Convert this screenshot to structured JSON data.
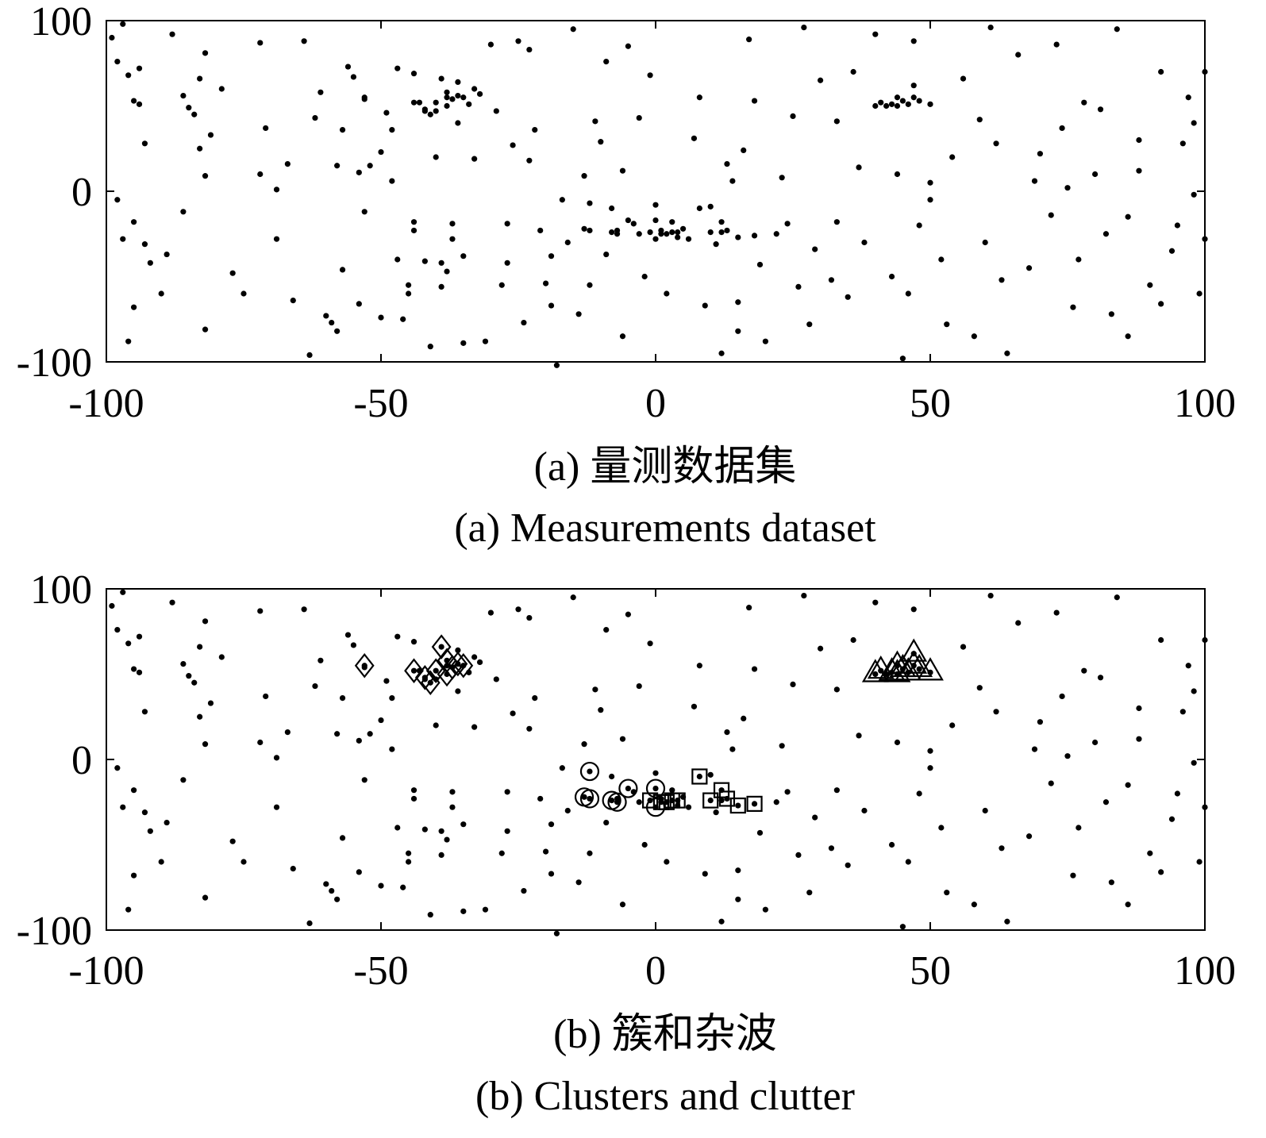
{
  "panels": [
    {
      "caption_zh": "(a) 量测数据集",
      "caption_en": "(a) Measurements dataset"
    },
    {
      "caption_zh": "(b) 簇和杂波",
      "caption_en": "(b) Clusters and clutter"
    }
  ],
  "chart_data": [
    {
      "type": "scatter",
      "title": "",
      "xlabel": "",
      "ylabel": "",
      "xlim": [
        -100,
        100
      ],
      "ylim": [
        -100,
        100
      ],
      "xticks": [
        -100,
        -50,
        0,
        50,
        100
      ],
      "yticks": [
        -100,
        0,
        100
      ],
      "xtick_labels": [
        "-100",
        "-50",
        "0",
        "50",
        "100"
      ],
      "ytick_labels": [
        "-100",
        "0",
        "100"
      ],
      "grid": false,
      "marker_color": "#000000",
      "series": [
        {
          "marker": "dot",
          "points": [
            [
              -99,
              90
            ],
            [
              -98,
              76
            ],
            [
              -97,
              98
            ],
            [
              -96,
              68
            ],
            [
              -95,
              53
            ],
            [
              -94,
              51
            ],
            [
              -93,
              28
            ],
            [
              -97,
              -28
            ],
            [
              -95,
              -18
            ],
            [
              -93,
              -31
            ],
            [
              -92,
              -42
            ],
            [
              -95,
              -68
            ],
            [
              -96,
              -88
            ],
            [
              -89,
              -37
            ],
            [
              -88,
              92
            ],
            [
              -86,
              56
            ],
            [
              -85,
              49
            ],
            [
              -84,
              45
            ],
            [
              -83,
              66
            ],
            [
              -82,
              81
            ],
            [
              -81,
              33
            ],
            [
              -82,
              9
            ],
            [
              -82,
              -81
            ],
            [
              -75,
              -60
            ],
            [
              -72,
              87
            ],
            [
              -72,
              10
            ],
            [
              -69,
              -28
            ],
            [
              -69,
              1
            ],
            [
              -67,
              16
            ],
            [
              -63,
              -96
            ],
            [
              -62,
              43
            ],
            [
              -60,
              -73
            ],
            [
              -59,
              -77
            ],
            [
              -58,
              -82
            ],
            [
              -58,
              15
            ],
            [
              -57,
              36
            ],
            [
              -56,
              73
            ],
            [
              -55,
              67
            ],
            [
              -54,
              11
            ],
            [
              -54,
              -66
            ],
            [
              -53,
              54
            ],
            [
              -52,
              15
            ],
            [
              -50,
              23
            ],
            [
              -50,
              -74
            ],
            [
              -49,
              46
            ],
            [
              -48,
              6
            ],
            [
              -47,
              72
            ],
            [
              -47,
              -40
            ],
            [
              -45,
              -55
            ],
            [
              -45,
              -60
            ],
            [
              -44,
              69
            ],
            [
              -44,
              -18
            ],
            [
              -43,
              52
            ],
            [
              -42,
              47
            ],
            [
              -42,
              -41
            ],
            [
              -41,
              -91
            ],
            [
              -40,
              47
            ],
            [
              -39,
              -42
            ],
            [
              -39,
              -56
            ],
            [
              -38,
              55
            ],
            [
              -38,
              -47
            ],
            [
              -37,
              -28
            ],
            [
              -37,
              -19
            ],
            [
              -36,
              64
            ],
            [
              -36,
              40
            ],
            [
              -35,
              -38
            ],
            [
              -35,
              -89
            ],
            [
              -34,
              51
            ],
            [
              -33,
              60
            ],
            [
              -32,
              57
            ],
            [
              -31,
              -88
            ],
            [
              -30,
              86
            ],
            [
              -29,
              47
            ],
            [
              -28,
              -55
            ],
            [
              -27,
              -19
            ],
            [
              -26,
              27
            ],
            [
              -25,
              88
            ],
            [
              -24,
              -77
            ],
            [
              -23,
              83
            ],
            [
              -22,
              36
            ],
            [
              -21,
              -23
            ],
            [
              -20,
              -54
            ],
            [
              -19,
              -38
            ],
            [
              -18,
              -102
            ],
            [
              -17,
              -5
            ],
            [
              -16,
              -30
            ],
            [
              -14,
              -72
            ],
            [
              -12,
              -55
            ],
            [
              -11,
              41
            ],
            [
              -10,
              29
            ],
            [
              -9,
              -37
            ],
            [
              -8,
              -10
            ],
            [
              -7,
              -23
            ],
            [
              -6,
              12
            ],
            [
              -5,
              85
            ],
            [
              -4,
              -19
            ],
            [
              -3,
              -25
            ],
            [
              -2,
              -50
            ],
            [
              -1,
              68
            ],
            [
              0,
              -8
            ],
            [
              1,
              -23
            ],
            [
              2,
              -60
            ],
            [
              3,
              -18
            ],
            [
              4,
              -27
            ],
            [
              5,
              -22
            ],
            [
              6,
              -28
            ],
            [
              8,
              55
            ],
            [
              10,
              -9
            ],
            [
              11,
              -31
            ],
            [
              12,
              -24
            ],
            [
              13,
              16
            ],
            [
              15,
              -82
            ],
            [
              15,
              -65
            ],
            [
              16,
              24
            ],
            [
              17,
              89
            ],
            [
              18,
              53
            ],
            [
              20,
              -88
            ],
            [
              22,
              -25
            ],
            [
              23,
              8
            ],
            [
              24,
              -19
            ],
            [
              26,
              -56
            ],
            [
              28,
              -78
            ],
            [
              30,
              65
            ],
            [
              32,
              -52
            ],
            [
              33,
              41
            ],
            [
              35,
              -62
            ],
            [
              36,
              70
            ],
            [
              38,
              -30
            ],
            [
              40,
              92
            ],
            [
              42,
              50
            ],
            [
              44,
              10
            ],
            [
              46,
              -60
            ],
            [
              48,
              -20
            ],
            [
              50,
              -5
            ],
            [
              50,
              5
            ],
            [
              52,
              -40
            ],
            [
              54,
              20
            ],
            [
              56,
              66
            ],
            [
              58,
              -85
            ],
            [
              60,
              -30
            ],
            [
              62,
              28
            ],
            [
              64,
              -95
            ],
            [
              66,
              80
            ],
            [
              68,
              -45
            ],
            [
              70,
              22
            ],
            [
              72,
              -14
            ],
            [
              74,
              37
            ],
            [
              76,
              -68
            ],
            [
              78,
              52
            ],
            [
              80,
              10
            ],
            [
              82,
              -25
            ],
            [
              84,
              95
            ],
            [
              86,
              -85
            ],
            [
              88,
              30
            ],
            [
              90,
              -55
            ],
            [
              92,
              70
            ],
            [
              94,
              -35
            ],
            [
              96,
              28
            ],
            [
              98,
              -2
            ],
            [
              99,
              -60
            ],
            [
              100,
              70
            ],
            [
              97,
              55
            ],
            [
              92,
              -66
            ],
            [
              88,
              12
            ],
            [
              83,
              -72
            ],
            [
              77,
              -40
            ],
            [
              73,
              86
            ],
            [
              69,
              6
            ],
            [
              63,
              -52
            ],
            [
              59,
              42
            ],
            [
              53,
              -78
            ],
            [
              47,
              88
            ],
            [
              43,
              -50
            ],
            [
              37,
              14
            ],
            [
              33,
              -18
            ],
            [
              29,
              -34
            ],
            [
              25,
              44
            ],
            [
              19,
              -43
            ],
            [
              14,
              6
            ],
            [
              9,
              -67
            ],
            [
              7,
              31
            ],
            [
              -3,
              43
            ],
            [
              -9,
              76
            ],
            [
              -13,
              9
            ],
            [
              -19,
              -67
            ],
            [
              -23,
              18
            ],
            [
              -27,
              -42
            ],
            [
              -33,
              19
            ],
            [
              -44,
              -23
            ],
            [
              -48,
              36
            ],
            [
              -53,
              -12
            ],
            [
              -57,
              -46
            ],
            [
              -61,
              58
            ],
            [
              -66,
              -64
            ],
            [
              -71,
              37
            ],
            [
              -77,
              -48
            ],
            [
              -83,
              25
            ],
            [
              -86,
              -12
            ],
            [
              -90,
              -60
            ],
            [
              -94,
              72
            ],
            [
              -98,
              -5
            ],
            [
              -79,
              60
            ],
            [
              -64,
              88
            ],
            [
              -46,
              -75
            ],
            [
              -40,
              20
            ],
            [
              -15,
              95
            ],
            [
              -6,
              -85
            ],
            [
              12,
              -95
            ],
            [
              27,
              96
            ],
            [
              45,
              -98
            ],
            [
              61,
              96
            ],
            [
              75,
              2
            ],
            [
              81,
              48
            ],
            [
              86,
              -15
            ],
            [
              95,
              -20
            ],
            [
              98,
              40
            ],
            [
              100,
              -28
            ]
          ]
        },
        {
          "marker": "diamond",
          "name": "",
          "points": [
            [
              -53,
              55
            ],
            [
              -44,
              52
            ],
            [
              -42,
              48
            ],
            [
              -41,
              45
            ],
            [
              -40,
              52
            ],
            [
              -39,
              66
            ],
            [
              -38,
              58
            ],
            [
              -38,
              50
            ],
            [
              -37,
              54
            ],
            [
              -36,
              56
            ],
            [
              -35,
              55
            ]
          ]
        },
        {
          "marker": "circle",
          "name": "",
          "points": [
            [
              -12,
              -7
            ],
            [
              -12,
              -23
            ],
            [
              -13,
              -22
            ],
            [
              -8,
              -24
            ],
            [
              -7,
              -25
            ],
            [
              -5,
              -17
            ],
            [
              0,
              -17
            ],
            [
              0,
              -28
            ]
          ]
        },
        {
          "marker": "square",
          "name": "",
          "points": [
            [
              -1,
              -24
            ],
            [
              1,
              -25
            ],
            [
              2,
              -25
            ],
            [
              3,
              -24
            ],
            [
              4,
              -24
            ],
            [
              8,
              -10
            ],
            [
              10,
              -24
            ],
            [
              12,
              -18
            ],
            [
              13,
              -23
            ],
            [
              15,
              -27
            ],
            [
              18,
              -26
            ]
          ]
        },
        {
          "marker": "triangle",
          "name": "",
          "points": [
            [
              40,
              50
            ],
            [
              41,
              52
            ],
            [
              43,
              51
            ],
            [
              44,
              50
            ],
            [
              44,
              55
            ],
            [
              45,
              53
            ],
            [
              46,
              51
            ],
            [
              47,
              62
            ],
            [
              47,
              55
            ],
            [
              48,
              53
            ],
            [
              50,
              51
            ]
          ]
        }
      ],
      "show_markers": [
        "dot"
      ]
    },
    {
      "type": "scatter",
      "title": "",
      "xlabel": "",
      "ylabel": "",
      "xlim": [
        -100,
        100
      ],
      "ylim": [
        -100,
        100
      ],
      "xticks": [
        -100,
        -50,
        0,
        50,
        100
      ],
      "yticks": [
        -100,
        0,
        100
      ],
      "xtick_labels": [
        "-100",
        "-50",
        "0",
        "50",
        "100"
      ],
      "ytick_labels": [
        "-100",
        "0",
        "100"
      ],
      "grid": false,
      "marker_color": "#000000",
      "show_markers": [
        "dot",
        "diamond",
        "circle",
        "square",
        "triangle"
      ]
    }
  ]
}
